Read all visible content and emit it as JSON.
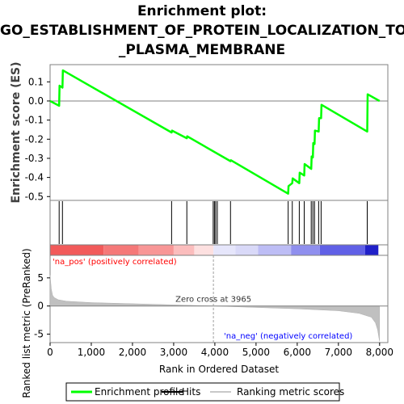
{
  "title_lines": [
    "Enrichment plot:",
    "GO_ESTABLISHMENT_OF_PROTEIN_LOCALIZATION_TO",
    "_PLASMA_MEMBRANE"
  ],
  "chart_data": {
    "type": "line",
    "es_panel": {
      "ylabel": "Enrichment score (ES)",
      "ylim": [
        -0.52,
        0.19
      ],
      "yticks": [
        0.1,
        0.0,
        -0.1,
        -0.2,
        -0.3,
        -0.4,
        -0.5
      ],
      "ytick_labels": [
        "0.1",
        "0.0",
        "-0.1",
        "-0.2",
        "-0.3",
        "-0.4",
        "-0.5"
      ],
      "series": [
        {
          "name": "Enrichment profile",
          "color": "#00ff00",
          "x": [
            0,
            220,
            230,
            300,
            310,
            2950,
            2960,
            3320,
            3330,
            4380,
            4390,
            5780,
            5790,
            5880,
            5890,
            6050,
            6060,
            6170,
            6180,
            6340,
            6350,
            6380,
            6390,
            6420,
            6430,
            6520,
            6530,
            6580,
            6590,
            7700,
            7710,
            8000
          ],
          "y": [
            0.0,
            -0.025,
            0.08,
            0.07,
            0.16,
            -0.165,
            -0.155,
            -0.195,
            -0.185,
            -0.315,
            -0.31,
            -0.485,
            -0.445,
            -0.43,
            -0.405,
            -0.43,
            -0.375,
            -0.39,
            -0.33,
            -0.355,
            -0.29,
            -0.295,
            -0.22,
            -0.225,
            -0.155,
            -0.16,
            -0.09,
            -0.09,
            -0.02,
            -0.16,
            0.035,
            0.0
          ]
        }
      ]
    },
    "hits": [
      220,
      300,
      2950,
      3320,
      3960,
      3990,
      4020,
      4060,
      4380,
      5780,
      5880,
      6050,
      6170,
      6340,
      6380,
      6420,
      6520,
      6580,
      7700
    ],
    "ranked_panel": {
      "ylabel": "Ranked list metric (PreRanked)",
      "ylim": [
        -6.5,
        9
      ],
      "yticks": [
        5,
        0,
        -5
      ],
      "ytick_labels": [
        "5",
        "0",
        "-5"
      ],
      "profile_x": [
        0,
        30,
        60,
        100,
        200,
        400,
        1000,
        2000,
        3000,
        3965,
        5000,
        6000,
        7000,
        7500,
        7800,
        7900,
        7950,
        7980,
        8000
      ],
      "profile_y": [
        5.5,
        3.0,
        1.9,
        1.5,
        1.1,
        0.85,
        0.6,
        0.4,
        0.2,
        0.0,
        -0.25,
        -0.5,
        -0.85,
        -1.3,
        -2.0,
        -3.0,
        -4.2,
        -5.5,
        -6.3
      ],
      "zero_cross_label": "Zero cross at 3965",
      "zero_cross_x": 3965,
      "pos_label": "'na_pos' (positively correlated)",
      "neg_label": "'na_neg' (negatively correlated)",
      "pos_color": "#ff0000",
      "neg_color": "#0000ff"
    },
    "xlabel": "Rank in Ordered Dataset",
    "xlim": [
      0,
      8200
    ],
    "xticks": [
      0,
      1000,
      2000,
      3000,
      4000,
      5000,
      6000,
      7000,
      8000
    ],
    "xtick_labels": [
      "0",
      "1,000",
      "2,000",
      "3,000",
      "4,000",
      "5,000",
      "6,000",
      "7,000",
      "8,000"
    ],
    "heatmap_bands": [
      {
        "from": 0,
        "to": 1300,
        "color": "#f25a5a"
      },
      {
        "from": 1300,
        "to": 2150,
        "color": "#f57878"
      },
      {
        "from": 2150,
        "to": 3000,
        "color": "#f89696"
      },
      {
        "from": 3000,
        "to": 3500,
        "color": "#fbbdbd"
      },
      {
        "from": 3500,
        "to": 3965,
        "color": "#fde0e0"
      },
      {
        "from": 3965,
        "to": 4500,
        "color": "#e6e6fb"
      },
      {
        "from": 4500,
        "to": 5050,
        "color": "#d9d9f8"
      },
      {
        "from": 5050,
        "to": 5850,
        "color": "#bdbdf5"
      },
      {
        "from": 5850,
        "to": 6550,
        "color": "#8f8fee"
      },
      {
        "from": 6550,
        "to": 7650,
        "color": "#6060e6"
      },
      {
        "from": 7650,
        "to": 7970,
        "color": "#2020c8"
      }
    ],
    "legend": [
      {
        "label": "Enrichment profile",
        "color": "#00ff00",
        "kind": "line"
      },
      {
        "label": "Hits",
        "color": "#000000",
        "kind": "line"
      },
      {
        "label": "Ranking metric scores",
        "color": "#c8c8c8",
        "kind": "line"
      }
    ]
  }
}
